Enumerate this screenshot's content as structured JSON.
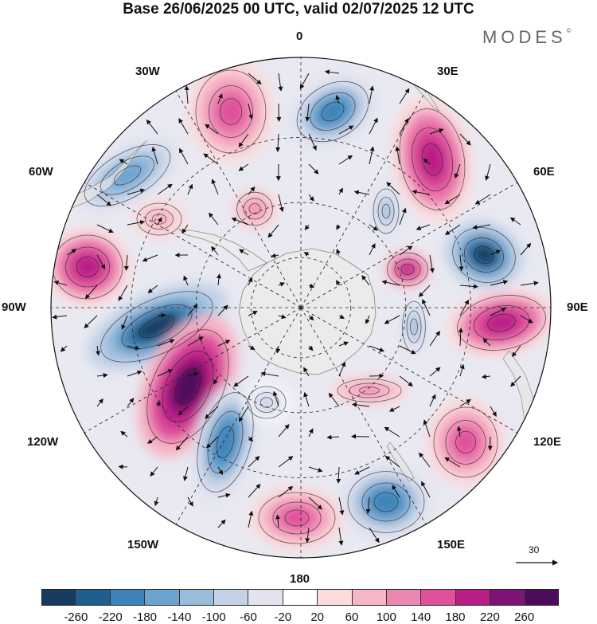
{
  "title": "Base 26/06/2025 00 UTC, valid 02/07/2025 12 UTC",
  "brand": "MODES",
  "brand_mark": "©",
  "longitude_labels": {
    "lon_0": "0",
    "lon_30e": "30E",
    "lon_60e": "60E",
    "lon_90e": "90E",
    "lon_120e": "120E",
    "lon_150e": "150E",
    "lon_180": "180",
    "lon_150w": "150W",
    "lon_120w": "120W",
    "lon_90w": "90W",
    "lon_60w": "60W",
    "lon_30w": "30W"
  },
  "reference_vector_label": "30",
  "colorbar": {
    "ticks": [
      "-260",
      "-220",
      "-180",
      "-140",
      "-100",
      "-60",
      "-20",
      "20",
      "60",
      "100",
      "140",
      "180",
      "220",
      "260"
    ],
    "colors": [
      "#163d5f",
      "#1e5f8e",
      "#3b83b8",
      "#6aa3cf",
      "#97bcdc",
      "#c5d2e6",
      "#e3e3f0",
      "#ffffff",
      "#fadcdc",
      "#f6b6c6",
      "#ee86b2",
      "#e0509c",
      "#b91e86",
      "#7f1277",
      "#4d0b5c"
    ]
  },
  "map": {
    "projection": "south-polar-stereographic",
    "field": "shaded anomaly with wind vectors",
    "colors": {
      "land": "#ececec",
      "coastline": "#777777",
      "graticule": "#222222"
    }
  }
}
